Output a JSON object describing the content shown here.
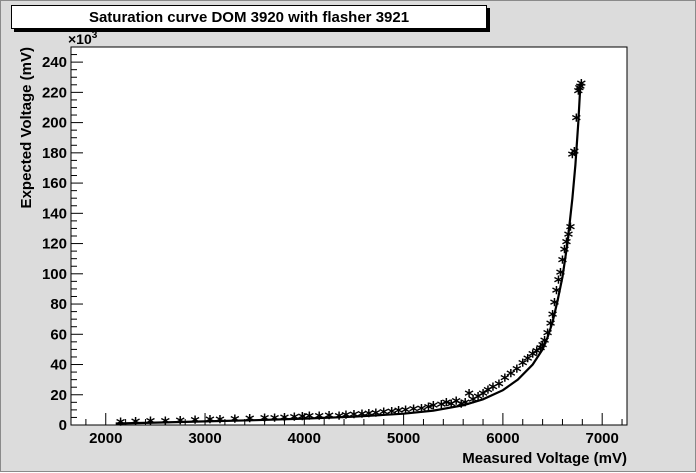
{
  "chart_data": {
    "type": "scatter",
    "title": "Saturation curve DOM 3920 with flasher 3921",
    "xlabel": "Measured Voltage (mV)",
    "ylabel": "Expected Voltage (mV)",
    "y_multiplier_label_base": "×10",
    "y_multiplier_label_exp": "3",
    "xlim": [
      1650,
      7250
    ],
    "ylim": [
      0,
      250
    ],
    "x_ticks": [
      2000,
      3000,
      4000,
      5000,
      6000,
      7000
    ],
    "y_ticks": [
      0,
      20,
      40,
      60,
      80,
      100,
      120,
      140,
      160,
      180,
      200,
      220,
      240
    ],
    "marker": "*",
    "grid": false,
    "series": [
      {
        "values_x": [
          2150,
          2300,
          2450,
          2600,
          2750,
          2900,
          3050,
          3150,
          3300,
          3450,
          3600,
          3700,
          3800,
          3900,
          3980,
          4050,
          4150,
          4250,
          4350,
          4420,
          4500,
          4580,
          4650,
          4720,
          4800,
          4880,
          4950,
          5020,
          5100,
          5180,
          5250,
          5300,
          5380,
          5430,
          5480,
          5530,
          5580,
          5620,
          5660,
          5700,
          5750,
          5800,
          5850,
          5900,
          5960,
          6020,
          6080,
          6140,
          6200,
          6250,
          6300,
          6340,
          6380,
          6400,
          6420,
          6450,
          6480,
          6500,
          6520,
          6540,
          6560,
          6580,
          6600,
          6620,
          6640,
          6660,
          6680,
          6700,
          6720,
          6740,
          6760,
          6770,
          6780,
          6790
        ],
        "values_y": [
          1.0,
          1.2,
          1.5,
          1.7,
          2.0,
          2.2,
          2.5,
          2.7,
          3.0,
          3.2,
          3.5,
          3.8,
          4.0,
          4.3,
          4.5,
          4.8,
          5.0,
          5.3,
          5.0,
          5.5,
          5.8,
          6.2,
          6.5,
          7.0,
          7.5,
          8.0,
          8.5,
          9.0,
          9.5,
          10.0,
          11.0,
          12.0,
          12.5,
          14.0,
          13.0,
          15.0,
          13.0,
          14.0,
          20.0,
          16.0,
          18.0,
          20.0,
          22.0,
          24.0,
          26.0,
          30.0,
          33.0,
          36.0,
          40.0,
          43.0,
          46.0,
          48.0,
          50.0,
          52.0,
          55.0,
          60.0,
          66.0,
          72.0,
          80.0,
          88.0,
          95.0,
          100.0,
          108.0,
          115.0,
          120.0,
          125.0,
          130.0,
          178.0,
          180.0,
          202.0,
          220.0,
          222.0,
          223.0,
          225.0
        ]
      }
    ],
    "fit_curve": {
      "values_x": [
        2100,
        2500,
        3000,
        3500,
        4000,
        4500,
        5000,
        5300,
        5600,
        5800,
        6000,
        6150,
        6300,
        6400,
        6450,
        6500,
        6550,
        6600,
        6650,
        6700,
        6730,
        6760,
        6780
      ],
      "values_y": [
        1.0,
        1.6,
        2.4,
        3.2,
        4.2,
        5.5,
        7.5,
        9.5,
        13.0,
        17.0,
        23.0,
        30.0,
        40.0,
        50.0,
        58.0,
        68.0,
        82.0,
        98.0,
        120.0,
        150.0,
        172.0,
        200.0,
        224.0
      ]
    }
  }
}
